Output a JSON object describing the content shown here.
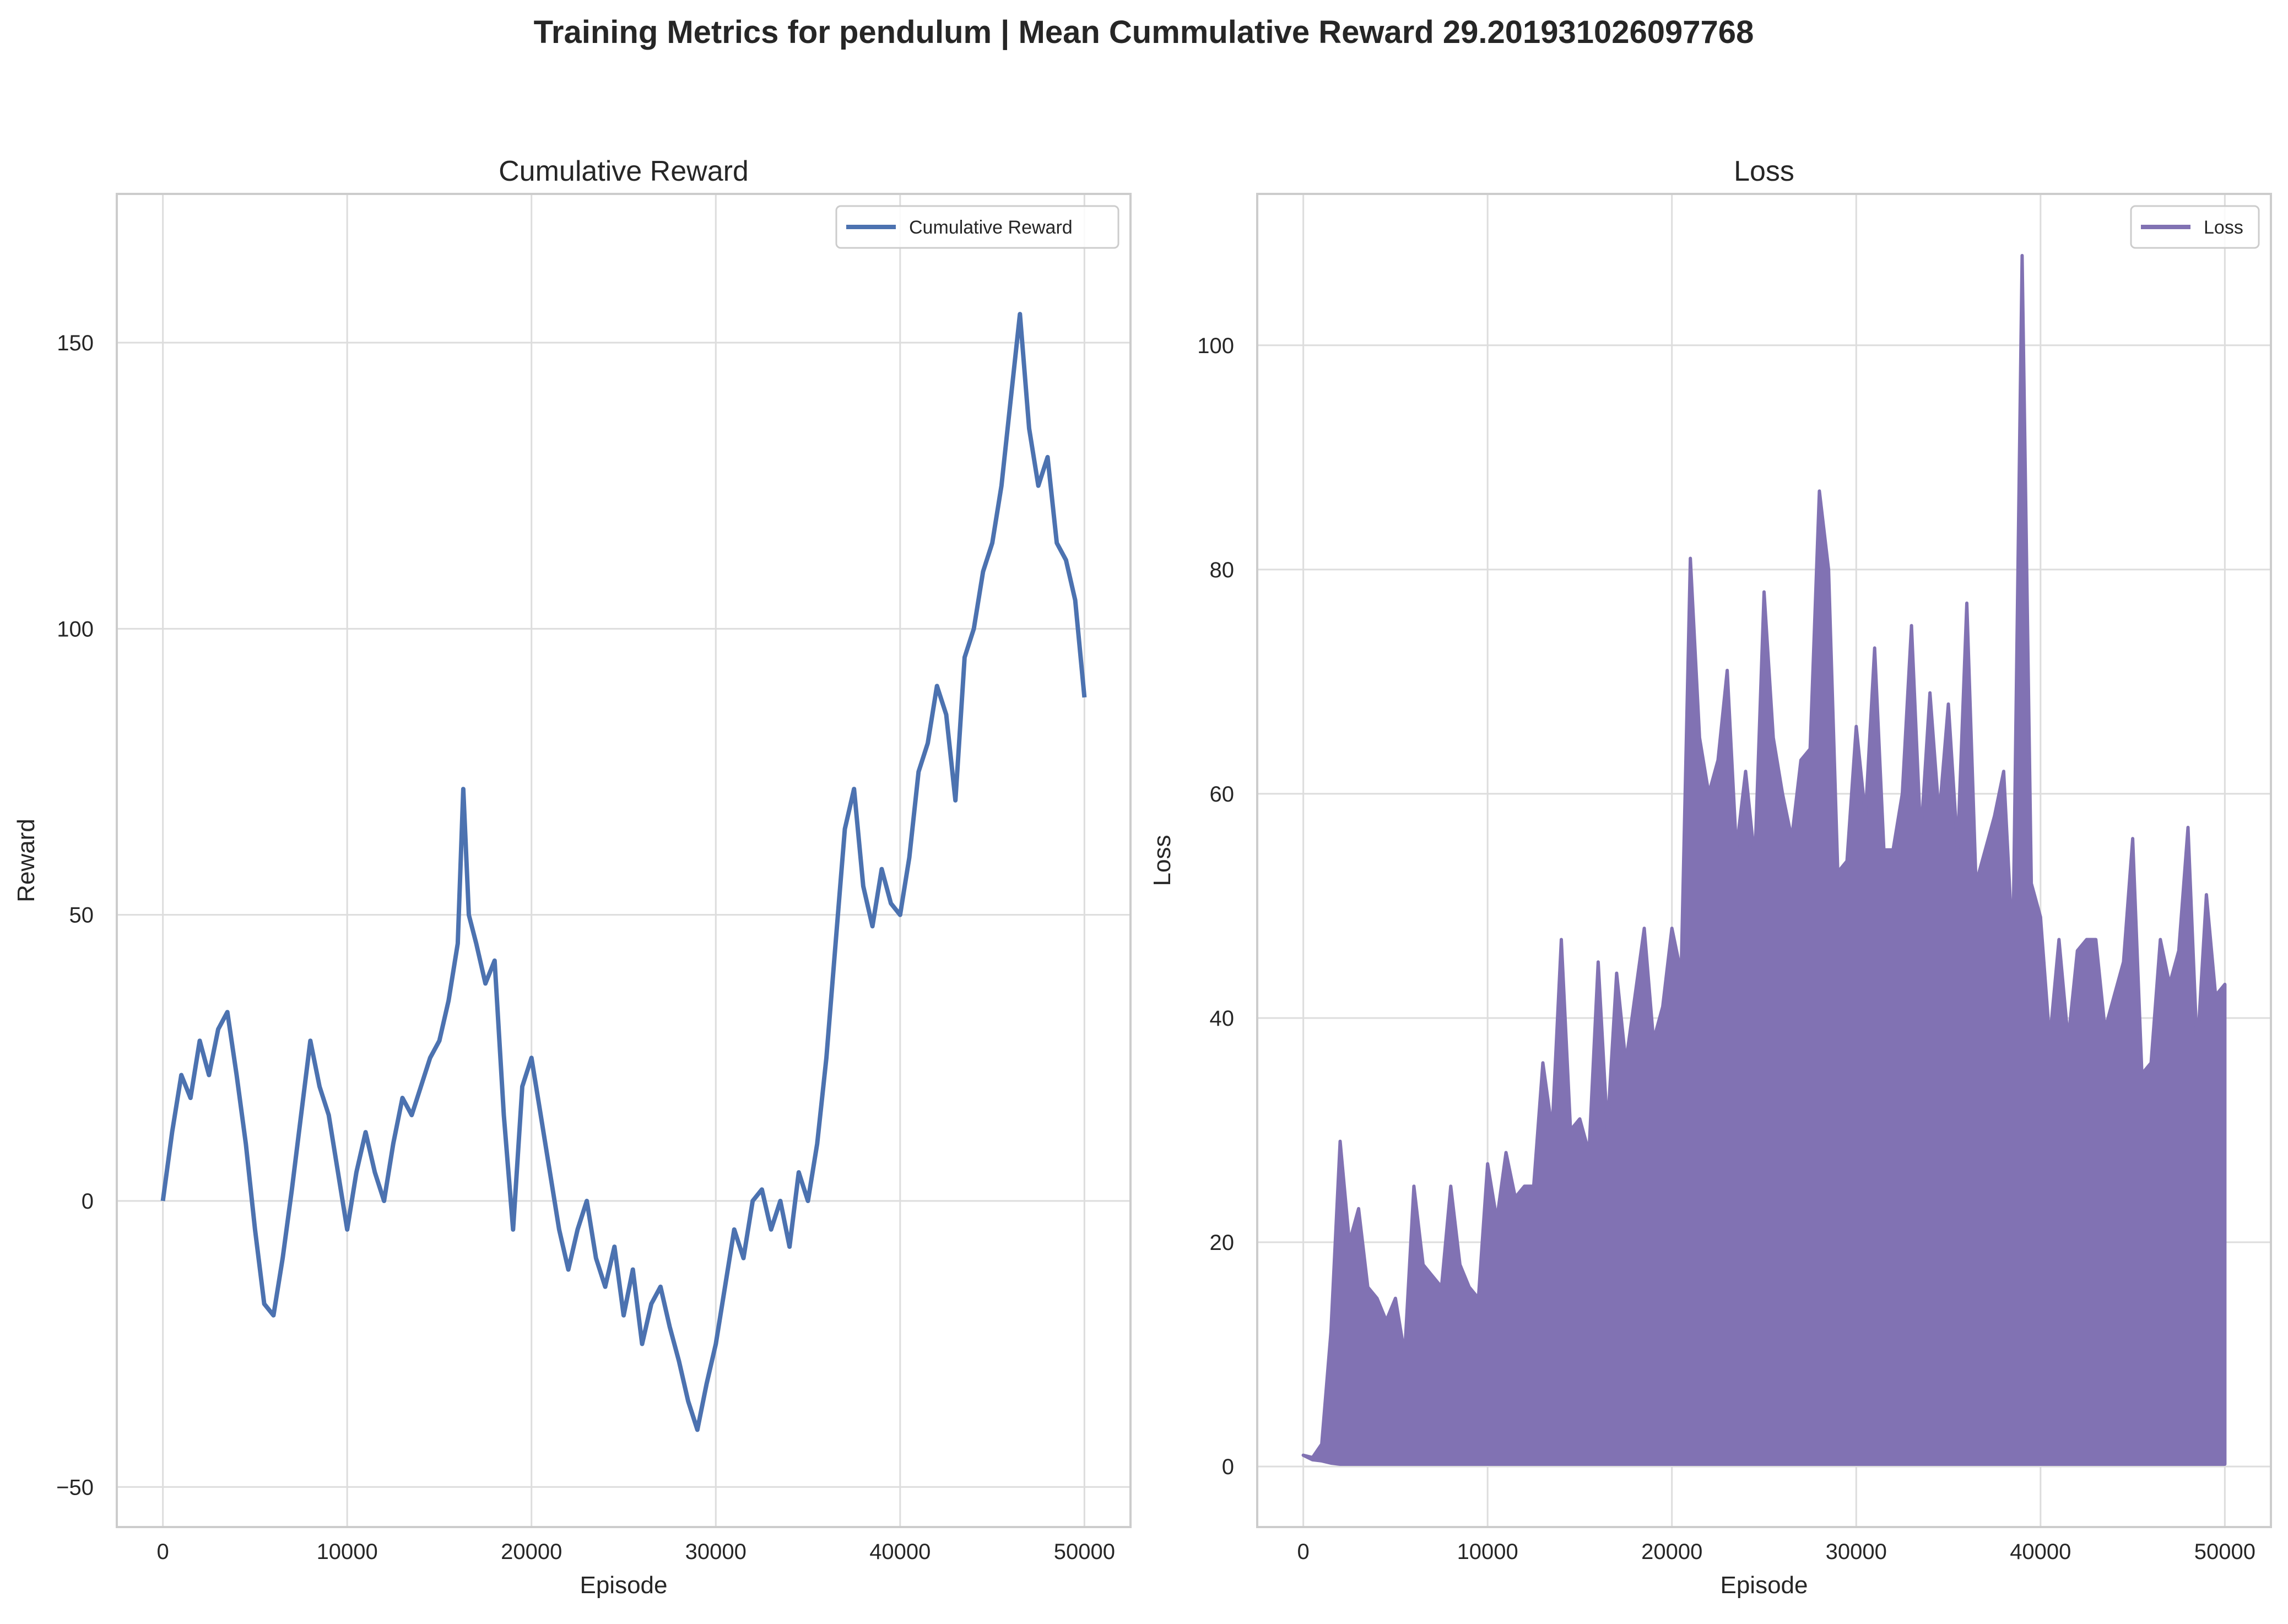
{
  "figure": {
    "suptitle": "Training Metrics for pendulum | Mean Cummulative Reward 29.201931026097768"
  },
  "chart_data": [
    {
      "type": "line",
      "title": "Cumulative Reward",
      "xlabel": "Episode",
      "ylabel": "Reward",
      "xlim": [
        -2500,
        52500
      ],
      "ylim": [
        -57,
        176
      ],
      "xticks": [
        0,
        10000,
        20000,
        30000,
        40000,
        50000
      ],
      "xtick_labels": [
        "0",
        "10000",
        "20000",
        "30000",
        "40000",
        "50000"
      ],
      "yticks": [
        -50,
        0,
        50,
        100,
        150
      ],
      "ytick_labels": [
        "−50",
        "0",
        "50",
        "100",
        "150"
      ],
      "grid": true,
      "legend": "top-right",
      "series": [
        {
          "name": "Cumulative Reward",
          "color": "#4c72b0",
          "x": [
            0,
            500,
            1000,
            1500,
            2000,
            2500,
            3000,
            3500,
            4000,
            4500,
            5000,
            5500,
            6000,
            6500,
            7000,
            7500,
            8000,
            8500,
            9000,
            9500,
            10000,
            10500,
            11000,
            11500,
            12000,
            12500,
            13000,
            13500,
            14000,
            14500,
            15000,
            15500,
            16000,
            16300,
            16600,
            17000,
            17500,
            18000,
            18500,
            19000,
            19500,
            20000,
            20500,
            21000,
            21500,
            22000,
            22500,
            23000,
            23500,
            24000,
            24500,
            25000,
            25500,
            26000,
            26500,
            27000,
            27500,
            28000,
            28500,
            29000,
            29500,
            30000,
            30500,
            31000,
            31500,
            32000,
            32500,
            33000,
            33500,
            34000,
            34500,
            35000,
            35500,
            36000,
            36500,
            37000,
            37500,
            38000,
            38500,
            39000,
            39500,
            40000,
            40500,
            41000,
            41500,
            42000,
            42500,
            43000,
            43500,
            44000,
            44500,
            45000,
            45500,
            46000,
            46500,
            47000,
            47500,
            48000,
            48500,
            49000,
            49500,
            50000
          ],
          "values": [
            0,
            12,
            22,
            18,
            28,
            22,
            30,
            33,
            22,
            10,
            -5,
            -18,
            -20,
            -10,
            2,
            15,
            28,
            20,
            15,
            5,
            -5,
            5,
            12,
            5,
            0,
            10,
            18,
            15,
            20,
            25,
            28,
            35,
            45,
            72,
            50,
            45,
            38,
            42,
            15,
            -5,
            20,
            25,
            15,
            5,
            -5,
            -12,
            -5,
            0,
            -10,
            -15,
            -8,
            -20,
            -12,
            -25,
            -18,
            -15,
            -22,
            -28,
            -35,
            -40,
            -32,
            -25,
            -15,
            -5,
            -10,
            0,
            2,
            -5,
            0,
            -8,
            5,
            0,
            10,
            25,
            45,
            65,
            72,
            55,
            48,
            58,
            52,
            50,
            60,
            75,
            80,
            90,
            85,
            70,
            95,
            100,
            110,
            115,
            125,
            140,
            155,
            135,
            125,
            130,
            115,
            112,
            105,
            88
          ]
        }
      ]
    },
    {
      "type": "line",
      "title": "Loss",
      "xlabel": "Episode",
      "ylabel": "Loss",
      "xlim": [
        -2500,
        52500
      ],
      "ylim": [
        -5.4,
        113.5
      ],
      "xticks": [
        0,
        10000,
        20000,
        30000,
        40000,
        50000
      ],
      "xtick_labels": [
        "0",
        "10000",
        "20000",
        "30000",
        "40000",
        "50000"
      ],
      "yticks": [
        0,
        20,
        40,
        60,
        80,
        100
      ],
      "ytick_labels": [
        "0",
        "20",
        "40",
        "60",
        "80",
        "100"
      ],
      "grid": true,
      "legend": "top-right",
      "series": [
        {
          "name": "Loss",
          "color": "#8172b3",
          "x": [
            0,
            500,
            1000,
            1500,
            2000,
            2500,
            3000,
            3500,
            4000,
            4500,
            5000,
            5500,
            6000,
            6500,
            7000,
            7500,
            8000,
            8500,
            9000,
            9500,
            10000,
            10500,
            11000,
            11500,
            12000,
            12500,
            13000,
            13500,
            14000,
            14500,
            15000,
            15500,
            16000,
            16500,
            17000,
            17500,
            18000,
            18500,
            19000,
            19500,
            20000,
            20500,
            21000,
            21500,
            22000,
            22500,
            23000,
            23500,
            24000,
            24500,
            25000,
            25500,
            26000,
            26500,
            27000,
            27500,
            28000,
            28500,
            29000,
            29500,
            30000,
            30500,
            31000,
            31500,
            32000,
            32500,
            33000,
            33500,
            34000,
            34500,
            35000,
            35500,
            36000,
            36500,
            37000,
            37500,
            38000,
            38500,
            39000,
            39500,
            40000,
            40500,
            41000,
            41500,
            42000,
            42500,
            43000,
            43500,
            44000,
            44500,
            45000,
            45500,
            46000,
            46500,
            47000,
            47500,
            48000,
            48500,
            49000,
            49500,
            50000
          ],
          "upper": [
            1,
            0.8,
            2,
            12,
            29,
            20,
            23,
            16,
            15,
            13,
            15,
            10,
            25,
            18,
            17,
            16,
            25,
            18,
            16,
            15,
            27,
            22,
            28,
            24,
            25,
            25,
            36,
            30,
            47,
            30,
            31,
            28,
            45,
            30,
            44,
            36,
            42,
            48,
            38,
            41,
            48,
            44,
            81,
            65,
            60,
            63,
            71,
            55,
            62,
            54,
            78,
            65,
            60,
            56,
            63,
            64,
            87,
            80,
            53,
            54,
            66,
            58,
            73,
            55,
            55,
            60,
            75,
            56,
            69,
            58,
            68,
            55,
            77,
            52,
            55,
            58,
            62,
            46,
            108,
            52,
            49,
            38,
            47,
            38,
            46,
            47,
            47,
            39,
            42,
            45,
            56,
            35,
            36,
            47,
            43,
            46,
            57,
            37,
            51,
            42,
            43
          ],
          "lower": [
            1,
            0.6,
            0.5,
            0.3,
            0.2,
            0.2,
            0.2,
            0.2,
            0.2,
            0.2,
            0.2,
            0.2,
            0.2,
            0.2,
            0.2,
            0.2,
            0.2,
            0.2,
            0.2,
            0.2,
            0.2,
            0.2,
            0.2,
            0.2,
            0.2,
            0.2,
            0.2,
            0.2,
            0.2,
            0.2,
            0.2,
            0.2,
            0.2,
            0.2,
            0.2,
            0.2,
            0.2,
            0.2,
            0.2,
            0.2,
            0.2,
            0.2,
            0.2,
            0.2,
            0.2,
            0.2,
            0.2,
            0.2,
            0.2,
            0.2,
            0.2,
            0.2,
            0.2,
            0.2,
            0.2,
            0.2,
            0.2,
            0.2,
            0.2,
            0.2,
            0.2,
            0.2,
            0.2,
            0.2,
            0.2,
            0.2,
            0.2,
            0.2,
            0.2,
            0.2,
            0.2,
            0.2,
            0.2,
            0.2,
            0.2,
            0.2,
            0.2,
            0.2,
            0.2,
            0.2,
            0.2,
            0.2,
            0.2,
            0.2,
            0.2,
            0.2,
            0.2,
            0.2,
            0.2,
            0.2,
            0.2,
            0.2,
            0.2,
            0.2,
            0.2,
            0.2,
            0.2,
            0.2,
            0.2,
            0.2,
            0.2
          ]
        }
      ]
    }
  ]
}
